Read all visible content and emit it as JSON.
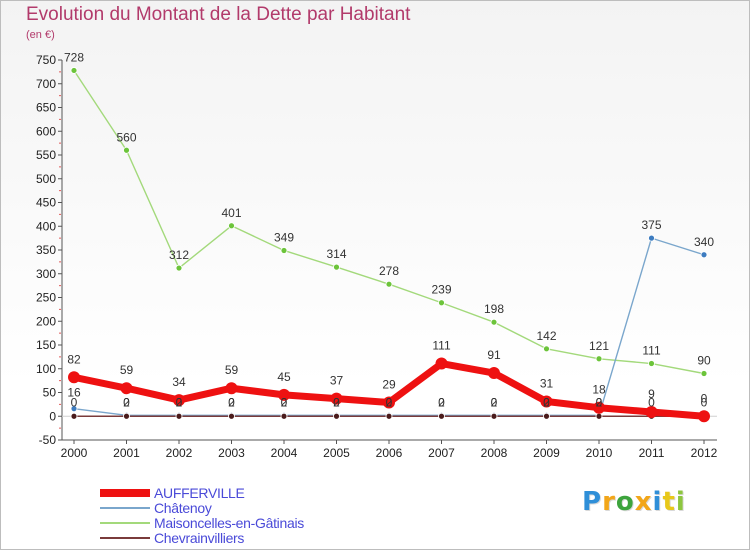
{
  "title": "Evolution du Montant de la Dette par Habitant",
  "unit": "(en €)",
  "logo": {
    "text": "Proxiti",
    "letters": [
      {
        "ch": "P",
        "color": "#2f8fd8"
      },
      {
        "ch": "r",
        "color": "#f2a619"
      },
      {
        "ch": "o",
        "color": "#3da43d"
      },
      {
        "ch": "x",
        "color": "#f2a619"
      },
      {
        "ch": "i",
        "color": "#2f8fd8"
      },
      {
        "ch": "t",
        "color": "#e8c81a"
      },
      {
        "ch": "i",
        "color": "#8dc63f"
      }
    ]
  },
  "chart_data": {
    "type": "line",
    "title": "Evolution du Montant de la Dette par Habitant",
    "ylabel": "(en €)",
    "xlabel": "",
    "categories": [
      "2000",
      "2001",
      "2002",
      "2003",
      "2004",
      "2005",
      "2006",
      "2007",
      "2008",
      "2009",
      "2010",
      "2011",
      "2012"
    ],
    "ylim": [
      -50,
      750
    ],
    "yticks": [
      -50,
      0,
      50,
      100,
      150,
      200,
      250,
      300,
      350,
      400,
      450,
      500,
      550,
      600,
      650,
      700,
      750
    ],
    "grid": false,
    "legend_position": "bottom-left",
    "series": [
      {
        "name": "AUFFERVILLE",
        "color": "#ee1111",
        "point_color": "#ee1111",
        "values": [
          82,
          59,
          34,
          59,
          45,
          37,
          29,
          111,
          91,
          31,
          18,
          9,
          0
        ]
      },
      {
        "name": "Châtenoy",
        "color": "#7aa6cc",
        "point_color": "#3d7cc0",
        "values": [
          16,
          2,
          2,
          2,
          2,
          2,
          2,
          2,
          2,
          2,
          2,
          375,
          340
        ]
      },
      {
        "name": "Maisoncelles-en-Gâtinais",
        "color": "#a3d97b",
        "point_color": "#6cc43a",
        "values": [
          728,
          560,
          312,
          401,
          349,
          314,
          278,
          239,
          198,
          142,
          121,
          111,
          90
        ]
      },
      {
        "name": "Chevrainvilliers",
        "color": "#7a3b3b",
        "point_color": "#4a1b1b",
        "values": [
          0,
          0,
          0,
          0,
          0,
          0,
          0,
          0,
          0,
          0,
          0,
          0,
          0
        ]
      }
    ],
    "data_labels": {
      "AUFFERVILLE": [
        "82",
        "59",
        "34",
        "59",
        "45",
        "37",
        "29",
        "111",
        "91",
        "31",
        "18",
        "9",
        "0"
      ],
      "Châtenoy": [
        "16",
        "2",
        "2",
        "2",
        "2",
        "2",
        "2",
        "2",
        "2",
        "2",
        "2",
        "375",
        "340"
      ],
      "Maisoncelles-en-Gâtinais": [
        "728",
        "560",
        "312",
        "401",
        "349",
        "314",
        "278",
        "239",
        "198",
        "142",
        "121",
        "111",
        "90"
      ],
      "Chevrainvilliers": [
        "0",
        "0",
        "0",
        "0",
        "0",
        "0",
        "0",
        "0",
        "0",
        "0",
        "0",
        "0",
        "0"
      ]
    }
  }
}
